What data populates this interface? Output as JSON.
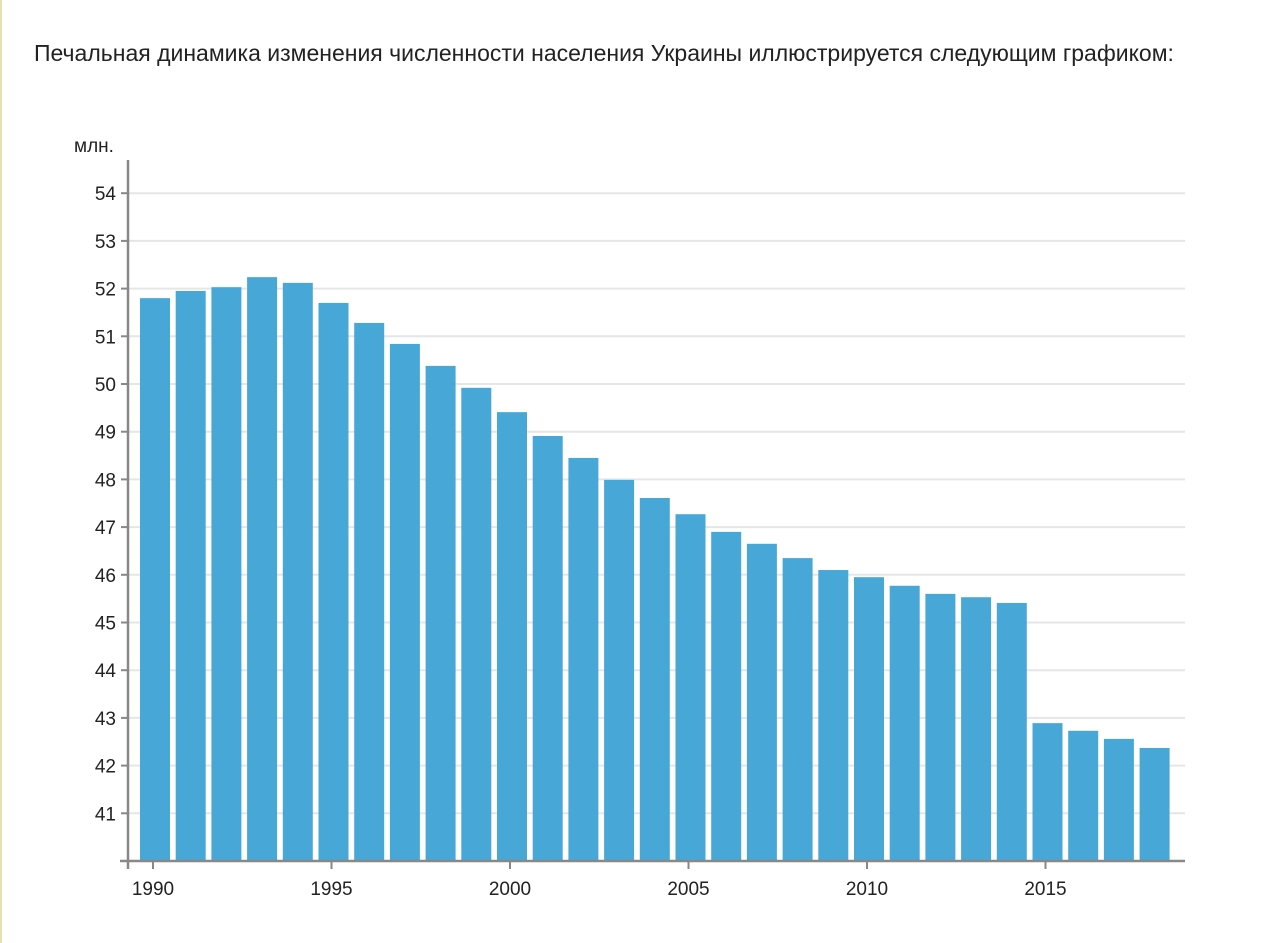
{
  "intro_text": "Печальная динамика изменения численности населения Украины иллюстрируется следующим графиком:",
  "chart_data": {
    "type": "bar",
    "title": "",
    "xlabel": "",
    "ylabel": "млн.",
    "ylim": [
      40,
      54.5
    ],
    "yticks": [
      41,
      42,
      43,
      44,
      45,
      46,
      47,
      48,
      49,
      50,
      51,
      52,
      53,
      54
    ],
    "xtick_labels": [
      "1990",
      "1995",
      "2000",
      "2005",
      "2010",
      "2015"
    ],
    "grid": true,
    "bar_color": "#47a8d8",
    "categories": [
      1990,
      1991,
      1992,
      1993,
      1994,
      1995,
      1996,
      1997,
      1998,
      1999,
      2000,
      2001,
      2002,
      2003,
      2004,
      2005,
      2006,
      2007,
      2008,
      2009,
      2010,
      2011,
      2012,
      2013,
      2014,
      2015,
      2016,
      2017,
      2018
    ],
    "values": [
      51.8,
      51.95,
      52.03,
      52.24,
      52.12,
      51.7,
      51.28,
      50.84,
      50.38,
      49.92,
      49.41,
      48.91,
      48.45,
      47.99,
      47.61,
      47.27,
      46.9,
      46.65,
      46.35,
      46.1,
      45.95,
      45.77,
      45.6,
      45.53,
      45.41,
      42.89,
      42.73,
      42.56,
      42.37
    ]
  }
}
